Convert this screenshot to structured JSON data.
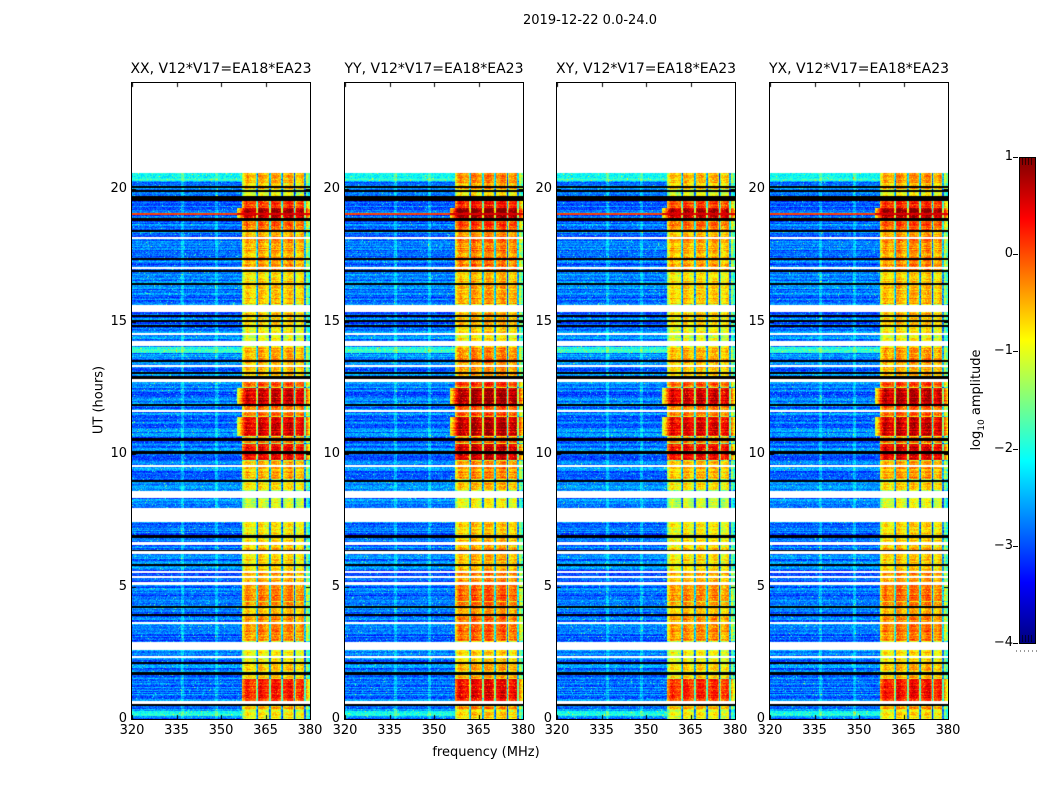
{
  "figure": {
    "title": "2019-12-22 0.0-24.0",
    "background": "#ffffff"
  },
  "chart_data": {
    "type": "heatmap",
    "title": "2019-12-22 0.0-24.0",
    "xlabel": "frequency (MHz)",
    "ylabel": "UT (hours)",
    "x_range_mhz": [
      320,
      380
    ],
    "x_ticks": [
      320,
      335,
      350,
      365,
      380
    ],
    "y_range_hours": [
      0,
      24
    ],
    "y_ticks": [
      0,
      5,
      10,
      15,
      20
    ],
    "data_time_extent_hours": [
      0,
      20.6
    ],
    "grid": false,
    "panels": [
      {
        "label": "XX",
        "title": "XX, V12*V17=EA18*EA23",
        "band_gain": 0.0
      },
      {
        "label": "YY",
        "title": "YY, V12*V17=EA18*EA23",
        "band_gain": 0.2
      },
      {
        "label": "XY",
        "title": "XY, V12*V17=EA18*EA23",
        "band_gain": -0.05
      },
      {
        "label": "YX",
        "title": "YX, V12*V17=EA18*EA23",
        "band_gain": 0.1
      }
    ],
    "colorbar": {
      "label": "log10 amplitude",
      "label_parts": {
        "prefix": "log",
        "sub": "10",
        "suffix": " amplitude"
      },
      "ticks": [
        1,
        0,
        -1,
        -2,
        -3,
        -4
      ],
      "range": [
        -4,
        1
      ],
      "colormap": "jet",
      "position": "right"
    },
    "features": {
      "rfi_band_mhz": [
        357,
        380
      ],
      "band_notches_mhz": [
        362.2,
        366.5,
        370.6,
        374.8,
        378.3
      ],
      "faint_lines_mhz": [
        337.0,
        348.5
      ],
      "white_gaps_hours": [
        [
          15.35,
          15.62
        ],
        [
          14.08,
          14.28
        ],
        [
          8.35,
          8.62
        ],
        [
          7.45,
          7.95
        ],
        [
          2.62,
          2.92
        ]
      ],
      "white_lines_hours": [
        18.15,
        17.02,
        14.52,
        13.32,
        12.78,
        11.62,
        9.55,
        6.62,
        6.28,
        5.55,
        5.35,
        5.12,
        3.62,
        2.35,
        0.62
      ],
      "black_lines_hours": [
        20.08,
        19.92,
        19.68,
        19.58,
        18.85,
        18.42,
        17.35,
        16.9,
        16.42,
        15.2,
        15.02,
        14.82,
        13.52,
        13.05,
        12.88,
        11.85,
        10.55,
        10.05,
        8.98,
        6.88,
        6.32,
        5.82,
        4.22,
        3.92,
        2.12,
        1.72,
        0.55
      ],
      "highlight_line_hours": 19.05,
      "cyan_rows_hours": [
        [
          20.3,
          20.6
        ],
        [
          13.82,
          14.05
        ],
        [
          0.12,
          0.32
        ]
      ],
      "band_events": [
        [
          0.0,
          0.35,
          -0.9
        ],
        [
          0.35,
          0.6,
          -0.6
        ],
        [
          0.62,
          1.5,
          0.2
        ],
        [
          1.55,
          2.1,
          -0.7
        ],
        [
          2.15,
          2.6,
          -0.9
        ],
        [
          2.95,
          3.9,
          -0.35
        ],
        [
          3.95,
          4.4,
          -0.5
        ],
        [
          4.45,
          5.1,
          -0.25
        ],
        [
          5.15,
          5.55,
          -0.45
        ],
        [
          5.6,
          6.85,
          -0.7
        ],
        [
          6.9,
          7.42,
          -0.8
        ],
        [
          7.98,
          8.32,
          -1.1
        ],
        [
          8.65,
          9.0,
          -0.8
        ],
        [
          9.05,
          9.75,
          -0.55
        ],
        [
          9.78,
          10.38,
          0.35
        ],
        [
          10.4,
          10.65,
          -0.2
        ],
        [
          10.68,
          11.4,
          0.5
        ],
        [
          11.45,
          11.85,
          -0.1
        ],
        [
          11.9,
          12.5,
          0.55
        ],
        [
          12.52,
          12.92,
          -0.1
        ],
        [
          12.95,
          13.5,
          -0.55
        ],
        [
          13.55,
          14.05,
          -0.5
        ],
        [
          14.3,
          14.8,
          -1.0
        ],
        [
          14.85,
          15.35,
          -0.75
        ],
        [
          15.65,
          16.0,
          -0.6
        ],
        [
          16.0,
          16.9,
          -0.7
        ],
        [
          16.95,
          18.4,
          -0.45
        ],
        [
          18.45,
          18.85,
          -0.2
        ],
        [
          18.88,
          19.28,
          0.75
        ],
        [
          19.3,
          19.6,
          0.1
        ],
        [
          19.62,
          19.95,
          -0.9
        ],
        [
          20.0,
          20.6,
          -0.6
        ]
      ]
    }
  }
}
